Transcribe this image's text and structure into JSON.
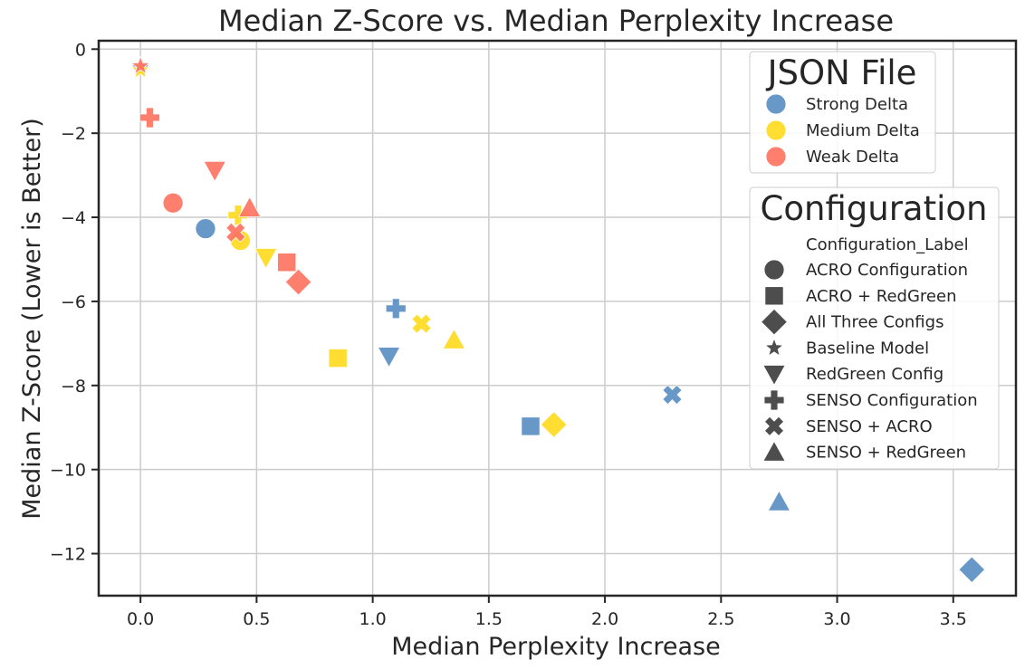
{
  "chart_data": {
    "type": "scatter",
    "title": "Median Z-Score vs. Median Perplexity Increase",
    "xlabel": "Median Perplexity Increase",
    "ylabel": "Median Z-Score (Lower is Better)",
    "xlim": [
      -0.18,
      3.77
    ],
    "ylim": [
      -13.0,
      0.2
    ],
    "xticks": [
      0.0,
      0.5,
      1.0,
      1.5,
      2.0,
      2.5,
      3.0,
      3.5
    ],
    "xtick_labels": [
      "0.0",
      "0.5",
      "1.0",
      "1.5",
      "2.0",
      "2.5",
      "3.0",
      "3.5"
    ],
    "yticks": [
      0,
      -2,
      -4,
      -6,
      -8,
      -10,
      -12
    ],
    "ytick_labels": [
      "0",
      "−2",
      "−4",
      "−6",
      "−8",
      "−10",
      "−12"
    ],
    "grid": true,
    "hue_legend": {
      "title": "JSON File",
      "placement": "top-right",
      "entries": [
        {
          "label": "Strong Delta",
          "color": "#5b8fc3"
        },
        {
          "label": "Medium Delta",
          "color": "#ffda1f"
        },
        {
          "label": "Weak Delta",
          "color": "#ff7462"
        }
      ]
    },
    "style_legend": {
      "title": "Configuration",
      "subtitle": "Configuration_Label",
      "placement": "right",
      "marker_color": "#4d4d4d",
      "entries": [
        {
          "label": "ACRO Configuration",
          "marker": "circle"
        },
        {
          "label": "ACRO + RedGreen",
          "marker": "square"
        },
        {
          "label": "All Three Configs",
          "marker": "diamond"
        },
        {
          "label": "Baseline Model",
          "marker": "star"
        },
        {
          "label": "RedGreen Config",
          "marker": "triangle-down"
        },
        {
          "label": "SENSO Configuration",
          "marker": "plus"
        },
        {
          "label": "SENSO + ACRO",
          "marker": "x"
        },
        {
          "label": "SENSO + RedGreen",
          "marker": "triangle-up"
        }
      ]
    },
    "series": [
      {
        "name": "Strong Delta",
        "color": "#5b8fc3",
        "points": [
          {
            "config": "Baseline Model",
            "marker": "star",
            "x": 0.0,
            "y": -0.45
          },
          {
            "config": "ACRO Configuration",
            "marker": "circle",
            "x": 0.28,
            "y": -4.27
          },
          {
            "config": "SENSO Configuration",
            "marker": "plus",
            "x": 1.1,
            "y": -6.17
          },
          {
            "config": "RedGreen Config",
            "marker": "triangle-down",
            "x": 1.07,
            "y": -7.3
          },
          {
            "config": "ACRO + RedGreen",
            "marker": "square",
            "x": 1.68,
            "y": -8.97
          },
          {
            "config": "SENSO + ACRO",
            "marker": "x",
            "x": 2.29,
            "y": -8.22
          },
          {
            "config": "SENSO + RedGreen",
            "marker": "triangle-up",
            "x": 2.75,
            "y": -10.77
          },
          {
            "config": "All Three Configs",
            "marker": "diamond",
            "x": 3.58,
            "y": -12.38
          }
        ]
      },
      {
        "name": "Medium Delta",
        "color": "#ffda1f",
        "points": [
          {
            "config": "Baseline Model",
            "marker": "star",
            "x": 0.0,
            "y": -0.5
          },
          {
            "config": "SENSO Configuration",
            "marker": "plus",
            "x": 0.42,
            "y": -3.95
          },
          {
            "config": "ACRO Configuration",
            "marker": "circle",
            "x": 0.43,
            "y": -4.55
          },
          {
            "config": "RedGreen Config",
            "marker": "triangle-down",
            "x": 0.54,
            "y": -4.95
          },
          {
            "config": "ACRO + RedGreen",
            "marker": "square",
            "x": 0.85,
            "y": -7.35
          },
          {
            "config": "SENSO + ACRO",
            "marker": "x",
            "x": 1.21,
            "y": -6.53
          },
          {
            "config": "SENSO + RedGreen",
            "marker": "triangle-up",
            "x": 1.35,
            "y": -6.92
          },
          {
            "config": "All Three Configs",
            "marker": "diamond",
            "x": 1.78,
            "y": -8.93
          }
        ]
      },
      {
        "name": "Weak Delta",
        "color": "#ff7462",
        "points": [
          {
            "config": "Baseline Model",
            "marker": "star",
            "x": 0.0,
            "y": -0.4
          },
          {
            "config": "SENSO Configuration",
            "marker": "plus",
            "x": 0.04,
            "y": -1.63
          },
          {
            "config": "ACRO Configuration",
            "marker": "circle",
            "x": 0.14,
            "y": -3.66
          },
          {
            "config": "RedGreen Config",
            "marker": "triangle-down",
            "x": 0.32,
            "y": -2.88
          },
          {
            "config": "SENSO + RedGreen",
            "marker": "triangle-up",
            "x": 0.47,
            "y": -3.78
          },
          {
            "config": "SENSO + ACRO",
            "marker": "x",
            "x": 0.41,
            "y": -4.36
          },
          {
            "config": "ACRO + RedGreen",
            "marker": "square",
            "x": 0.63,
            "y": -5.07
          },
          {
            "config": "All Three Configs",
            "marker": "diamond",
            "x": 0.68,
            "y": -5.54
          }
        ]
      }
    ]
  }
}
